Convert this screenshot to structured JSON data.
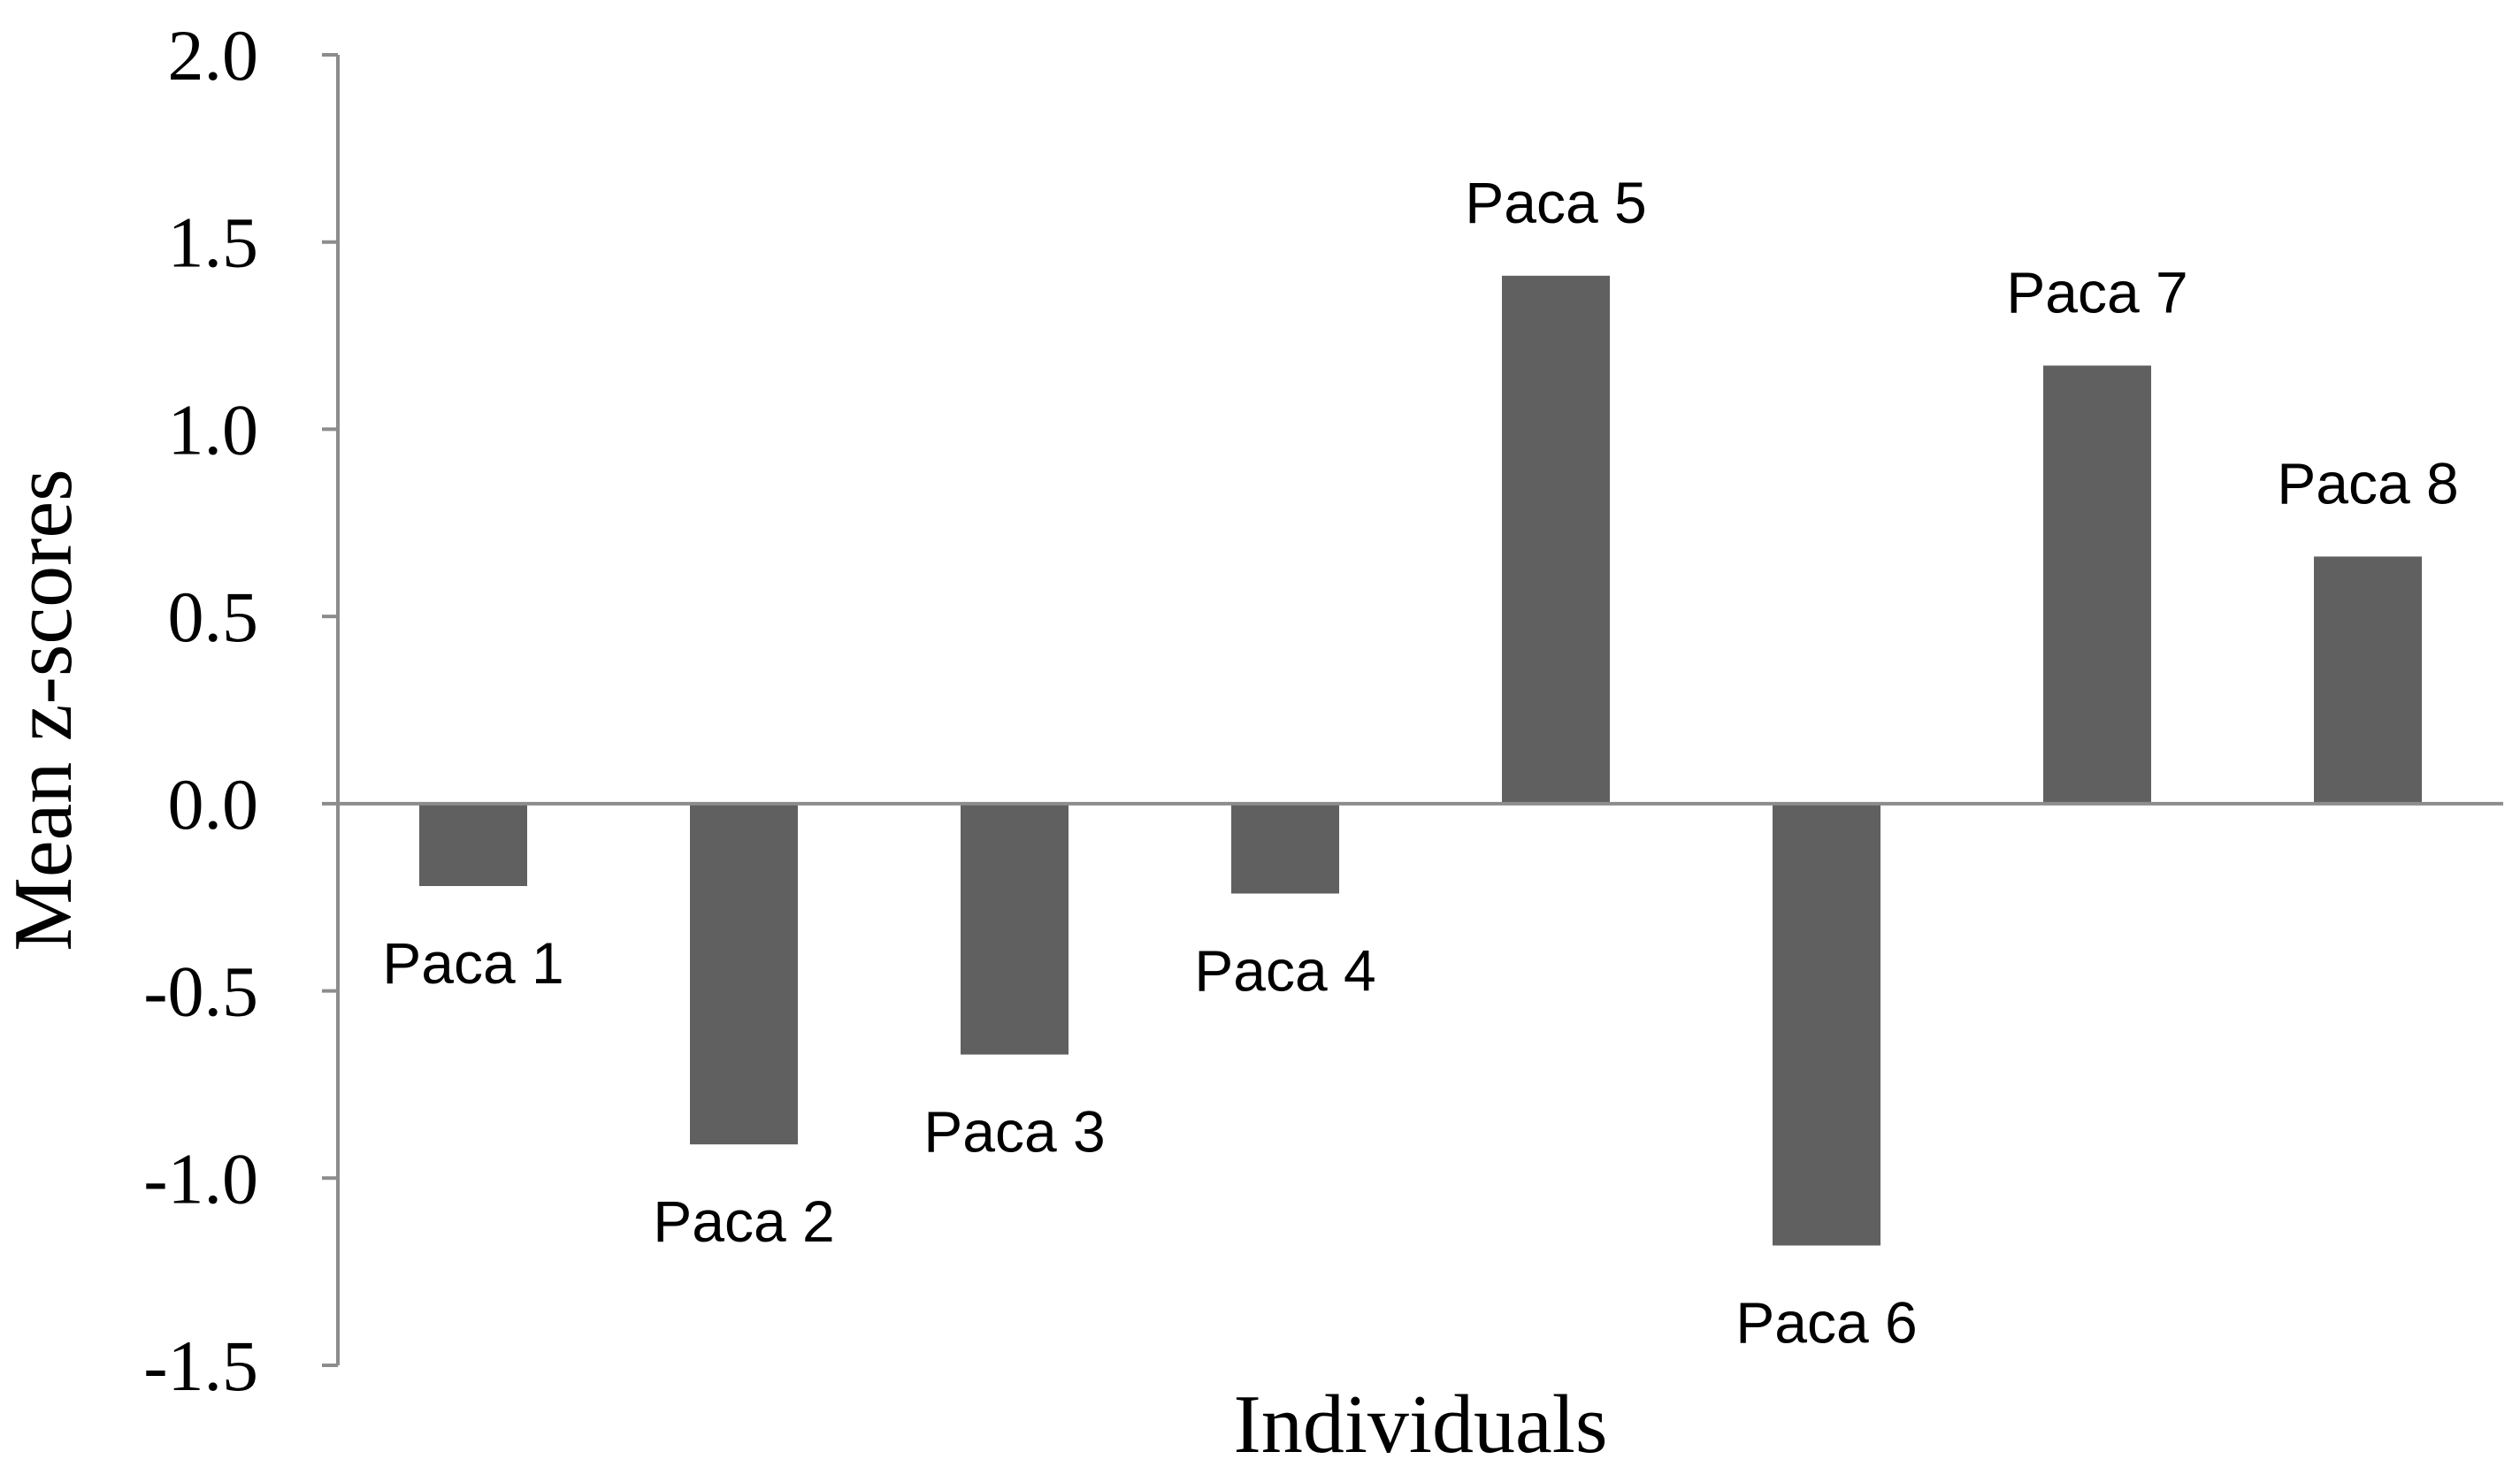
{
  "chart_data": {
    "type": "bar",
    "title": "",
    "xlabel": "Individuals",
    "ylabel": "Mean z-scores",
    "ylim": [
      -1.5,
      2.0
    ],
    "yticks": [
      "2.0",
      "1.5",
      "1.0",
      "0.5",
      "0.0",
      "-0.5",
      "-1.0",
      "-1.5"
    ],
    "yticks_values": [
      2.0,
      1.5,
      1.0,
      0.5,
      0.0,
      -0.5,
      -1.0,
      -1.5
    ],
    "categories": [
      "Paca 1",
      "Paca 2",
      "Paca 3",
      "Paca 4",
      "Paca 5",
      "Paca 6",
      "Paca 7",
      "Paca 8"
    ],
    "values": [
      -0.22,
      -0.91,
      -0.67,
      -0.24,
      1.41,
      -1.18,
      1.17,
      0.66
    ],
    "bar_color": "#606060",
    "axis_color": "#8c8c8c",
    "grid": false,
    "legend": false
  }
}
